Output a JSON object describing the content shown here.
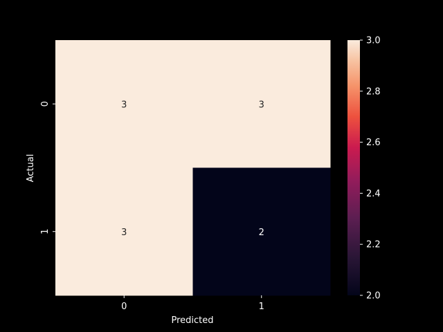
{
  "chart_data": {
    "type": "heatmap",
    "title": "",
    "xlabel": "Predicted",
    "ylabel": "Actual",
    "x_categories": [
      "0",
      "1"
    ],
    "y_categories": [
      "0",
      "1"
    ],
    "values": [
      [
        3,
        3
      ],
      [
        3,
        2
      ]
    ],
    "annotations": [
      [
        "3",
        "3"
      ],
      [
        "3",
        "2"
      ]
    ],
    "colorbar": {
      "range": [
        2.0,
        3.0
      ],
      "ticks": [
        "2.0",
        "2.2",
        "2.4",
        "2.6",
        "2.8",
        "3.0"
      ],
      "colormap": "rocket"
    },
    "colors": {
      "background": "#000000",
      "text": "#ffffff",
      "low": "#03051a",
      "high": "#faebdd",
      "annotation_on_light": "#262626",
      "annotation_on_dark": "#ffffff"
    }
  }
}
